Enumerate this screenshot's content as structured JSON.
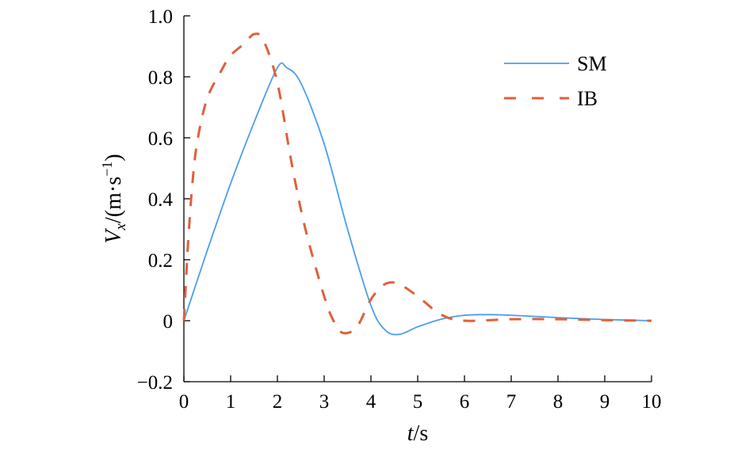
{
  "chart_data": {
    "type": "line",
    "xlabel_italic": "t",
    "xlabel_unit": "/s",
    "ylabel_italic": "V",
    "ylabel_sub": "x",
    "ylabel_unit": "/(m·s",
    "ylabel_sup": "−1",
    "ylabel_close": ")",
    "xlim": [
      0,
      10
    ],
    "ylim": [
      -0.2,
      1.0
    ],
    "x_ticks": [
      "0",
      "1",
      "2",
      "3",
      "4",
      "5",
      "6",
      "7",
      "8",
      "9",
      "10"
    ],
    "y_ticks": [
      "−0.2",
      "0",
      "0.2",
      "0.4",
      "0.6",
      "0.8",
      "1.0"
    ],
    "legend_position": "top-right",
    "series": [
      {
        "name": "SM",
        "color": "#4a9ef0",
        "style": "solid",
        "x": [
          0,
          0.5,
          1,
          1.5,
          2,
          2.2,
          2.5,
          3,
          3.5,
          4,
          4.3,
          4.6,
          5,
          5.5,
          6,
          6.5,
          7,
          8,
          9,
          10
        ],
        "y": [
          0,
          0.23,
          0.45,
          0.65,
          0.83,
          0.83,
          0.78,
          0.58,
          0.3,
          0.05,
          -0.03,
          -0.045,
          -0.02,
          0.005,
          0.018,
          0.02,
          0.018,
          0.01,
          0.004,
          0.0
        ]
      },
      {
        "name": "IB",
        "color": "#e0603a",
        "style": "dashed",
        "x": [
          0,
          0.1,
          0.2,
          0.3,
          0.5,
          0.8,
          1,
          1.3,
          1.5,
          1.7,
          2,
          2.3,
          2.6,
          3,
          3.2,
          3.4,
          3.7,
          4,
          4.3,
          4.6,
          5,
          5.5,
          6,
          7,
          8,
          9,
          10
        ],
        "y": [
          0,
          0.28,
          0.48,
          0.6,
          0.73,
          0.82,
          0.87,
          0.91,
          0.94,
          0.92,
          0.78,
          0.52,
          0.3,
          0.08,
          0.0,
          -0.04,
          -0.02,
          0.07,
          0.12,
          0.12,
          0.08,
          0.02,
          0.0,
          0.005,
          0.005,
          0.002,
          0.0
        ]
      }
    ]
  }
}
